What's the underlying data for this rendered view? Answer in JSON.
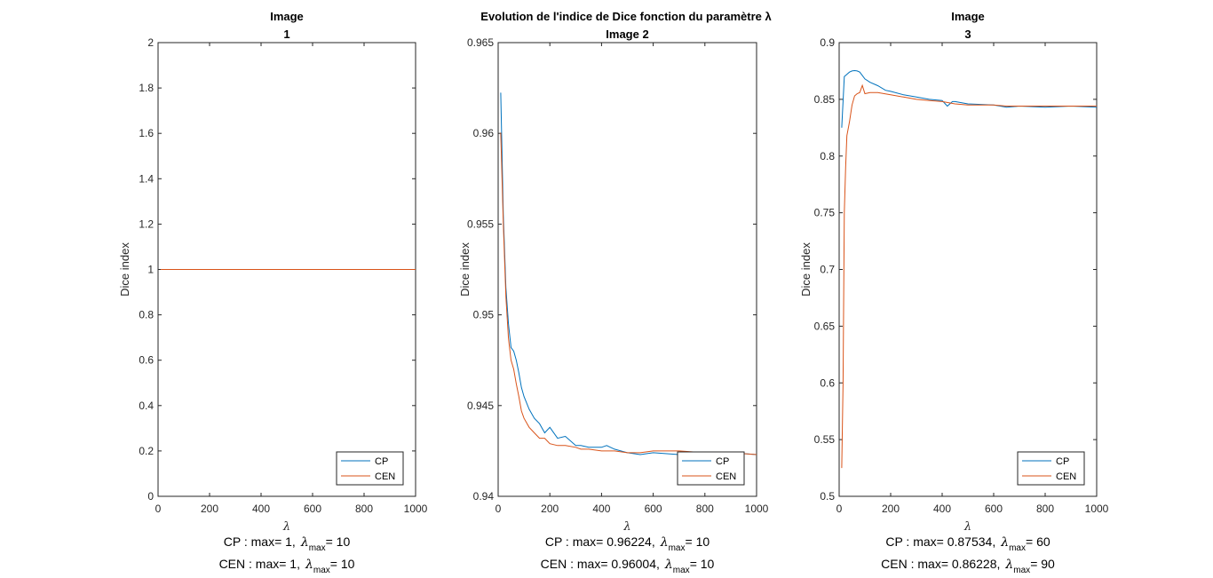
{
  "figure": {
    "suptitle": "Evolution de l'indice de Dice fonction du paramètre λ",
    "lambda_symbol": "λ",
    "lambda_max_sub": "max"
  },
  "colors": {
    "CP": "#0072BD",
    "CEN": "#D95319",
    "axis": "#262626"
  },
  "chart_data": [
    {
      "type": "line",
      "title_lines": [
        "Image",
        "1"
      ],
      "xlabel": "λ",
      "ylabel": "Dice index",
      "xlim": [
        0,
        1000
      ],
      "ylim": [
        0,
        2
      ],
      "xticks": [
        "0",
        "200",
        "400",
        "600",
        "800",
        "1000"
      ],
      "yticks": [
        "0",
        "0.2",
        "0.4",
        "0.6",
        "0.8",
        "1",
        "1.2",
        "1.4",
        "1.6",
        "1.8",
        "2"
      ],
      "legend": {
        "position": "bottom-right",
        "entries": [
          "CP",
          "CEN"
        ]
      },
      "series": [
        {
          "name": "CP",
          "x": [
            10,
            1000
          ],
          "y": [
            1,
            1
          ]
        },
        {
          "name": "CEN",
          "x": [
            10,
            1000
          ],
          "y": [
            1,
            1
          ]
        }
      ],
      "notes": [
        {
          "series": "CP",
          "prefix": "CP : max= 1,",
          "lambda_max": "10"
        },
        {
          "series": "CEN",
          "prefix": "CEN : max= 1,",
          "lambda_max": "10"
        }
      ]
    },
    {
      "type": "line",
      "title_lines": [
        "Image 2"
      ],
      "xlabel": "λ",
      "ylabel": "Dice index",
      "xlim": [
        0,
        1000
      ],
      "ylim": [
        0.94,
        0.965
      ],
      "xticks": [
        "0",
        "200",
        "400",
        "600",
        "800",
        "1000"
      ],
      "yticks": [
        "0.94",
        "0.945",
        "0.95",
        "0.955",
        "0.96",
        "0.965"
      ],
      "legend": {
        "position": "bottom-right",
        "entries": [
          "CP",
          "CEN"
        ]
      },
      "series": [
        {
          "name": "CP",
          "x": [
            10,
            20,
            30,
            40,
            50,
            60,
            70,
            80,
            90,
            100,
            120,
            140,
            160,
            180,
            200,
            230,
            260,
            300,
            320,
            350,
            400,
            420,
            450,
            500,
            550,
            600,
            700,
            800,
            900,
            1000
          ],
          "y": [
            0.96224,
            0.9555,
            0.9515,
            0.9495,
            0.9482,
            0.948,
            0.9475,
            0.9468,
            0.946,
            0.9455,
            0.9448,
            0.9443,
            0.944,
            0.9435,
            0.9438,
            0.9432,
            0.9433,
            0.9428,
            0.9428,
            0.9427,
            0.9427,
            0.9428,
            0.9426,
            0.9424,
            0.9423,
            0.9424,
            0.9423,
            0.9424,
            0.9424,
            0.9423
          ]
        },
        {
          "name": "CEN",
          "x": [
            10,
            20,
            30,
            40,
            50,
            60,
            70,
            80,
            90,
            100,
            120,
            140,
            160,
            180,
            200,
            230,
            260,
            300,
            320,
            350,
            400,
            420,
            450,
            500,
            550,
            600,
            700,
            800,
            900,
            1000
          ],
          "y": [
            0.96004,
            0.955,
            0.951,
            0.9487,
            0.9475,
            0.947,
            0.9462,
            0.9455,
            0.9447,
            0.9443,
            0.9438,
            0.9435,
            0.9432,
            0.9432,
            0.9429,
            0.9428,
            0.9428,
            0.9427,
            0.9426,
            0.9426,
            0.9425,
            0.9425,
            0.9425,
            0.9424,
            0.9424,
            0.9425,
            0.9425,
            0.9424,
            0.9424,
            0.9423
          ]
        }
      ],
      "notes": [
        {
          "series": "CP",
          "prefix": "CP : max= 0.96224,",
          "lambda_max": "10"
        },
        {
          "series": "CEN",
          "prefix": "CEN : max= 0.96004,",
          "lambda_max": "10"
        }
      ]
    },
    {
      "type": "line",
      "title_lines": [
        "Image",
        "3"
      ],
      "xlabel": "λ",
      "ylabel": "Dice index",
      "xlim": [
        0,
        1000
      ],
      "ylim": [
        0.5,
        0.9
      ],
      "xticks": [
        "0",
        "200",
        "400",
        "600",
        "800",
        "1000"
      ],
      "yticks": [
        "0.5",
        "0.55",
        "0.6",
        "0.65",
        "0.7",
        "0.75",
        "0.8",
        "0.85",
        "0.9"
      ],
      "legend": {
        "position": "bottom-right",
        "entries": [
          "CP",
          "CEN"
        ]
      },
      "series": [
        {
          "name": "CP",
          "x": [
            10,
            20,
            30,
            40,
            50,
            60,
            70,
            80,
            100,
            120,
            150,
            180,
            200,
            250,
            300,
            350,
            400,
            420,
            440,
            450,
            500,
            600,
            650,
            700,
            800,
            900,
            1000
          ],
          "y": [
            0.825,
            0.87,
            0.872,
            0.874,
            0.875,
            0.87534,
            0.875,
            0.874,
            0.868,
            0.865,
            0.862,
            0.858,
            0.857,
            0.854,
            0.852,
            0.85,
            0.849,
            0.844,
            0.848,
            0.848,
            0.846,
            0.845,
            0.843,
            0.844,
            0.843,
            0.844,
            0.843
          ]
        },
        {
          "name": "CEN",
          "x": [
            10,
            15,
            20,
            25,
            30,
            40,
            50,
            60,
            70,
            80,
            90,
            100,
            120,
            150,
            200,
            250,
            300,
            350,
            400,
            450,
            500,
            600,
            650,
            700,
            800,
            900,
            1000
          ],
          "y": [
            0.525,
            0.6,
            0.75,
            0.79,
            0.818,
            0.83,
            0.845,
            0.853,
            0.855,
            0.856,
            0.86228,
            0.855,
            0.856,
            0.856,
            0.854,
            0.852,
            0.85,
            0.849,
            0.848,
            0.846,
            0.845,
            0.845,
            0.844,
            0.844,
            0.844,
            0.844,
            0.844
          ]
        }
      ],
      "notes": [
        {
          "series": "CP",
          "prefix": "CP : max= 0.87534,",
          "lambda_max": "60"
        },
        {
          "series": "CEN",
          "prefix": "CEN : max= 0.86228,",
          "lambda_max": "90"
        }
      ]
    }
  ]
}
